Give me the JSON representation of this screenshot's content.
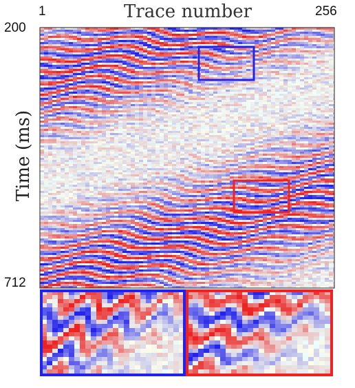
{
  "header": {
    "title": "Trace number"
  },
  "axes": {
    "x_tick_start": "1",
    "x_tick_end": "256",
    "y_tick_start": "200",
    "y_tick_end": "712",
    "ylabel": "Time (ms)"
  },
  "colors": {
    "positive": "#e8222a",
    "negative": "#2a2ae8",
    "neutral": "#ffffff",
    "box_blue": "#2222ee",
    "box_red": "#ee2222",
    "frame": "#222222"
  }
}
